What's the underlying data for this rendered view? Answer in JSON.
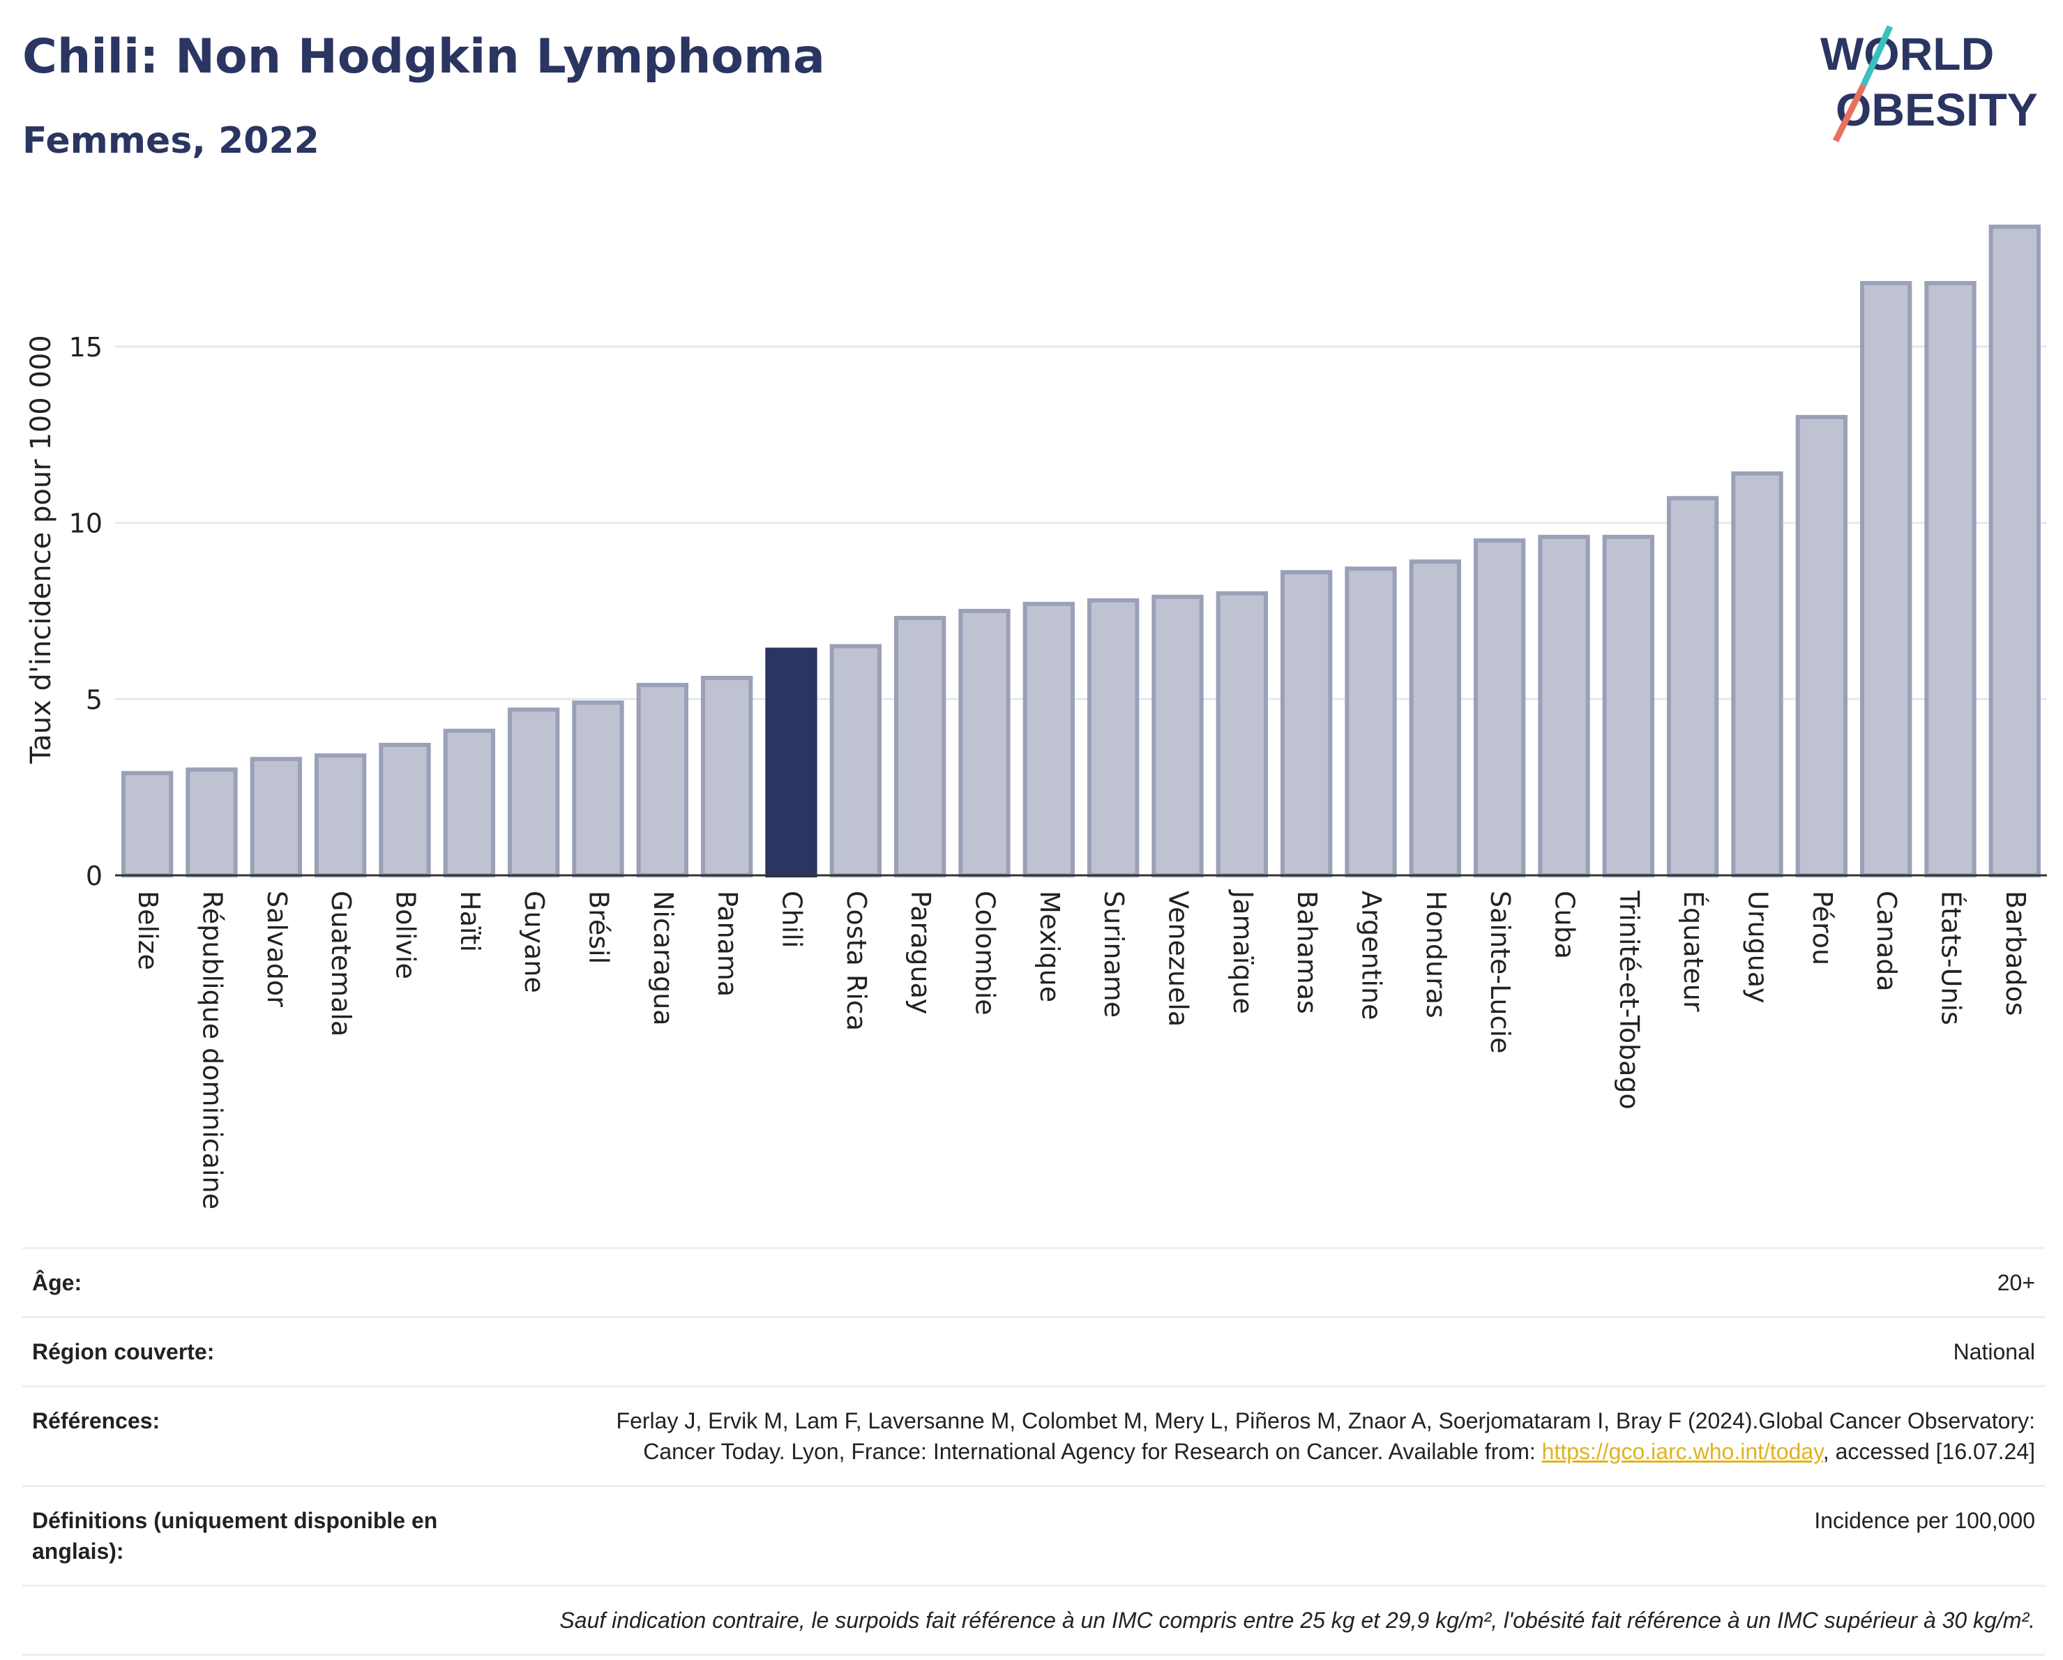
{
  "header": {
    "title": "Chili: Non Hodgkin Lymphoma",
    "subtitle": "Femmes, 2022",
    "logo_line1": "WORLD",
    "logo_line2": "OBESITY"
  },
  "colors": {
    "accent": "#2b3561",
    "bar": "#bfc3d1",
    "bar_border": "#9aa0b7",
    "highlight": "#2b3561",
    "logo_slash_teal": "#3bbfbf",
    "logo_slash_red": "#e8705f",
    "link": "#e0b21f"
  },
  "chart_data": {
    "type": "bar",
    "title": "Chili: Non Hodgkin Lymphoma",
    "subtitle": "Femmes, 2022",
    "xlabel": "",
    "ylabel": "Taux d'incidence pour 100 000",
    "ylim": [
      0,
      18.5
    ],
    "yticks": [
      0,
      5,
      10,
      15
    ],
    "grid": true,
    "highlight": "Chili",
    "categories": [
      "Belize",
      "République dominicaine",
      "Salvador",
      "Guatemala",
      "Bolivie",
      "Haïti",
      "Guyane",
      "Brésil",
      "Nicaragua",
      "Panama",
      "Chili",
      "Costa Rica",
      "Paraguay",
      "Colombie",
      "Mexique",
      "Suriname",
      "Venezuela",
      "Jamaïque",
      "Bahamas",
      "Argentine",
      "Honduras",
      "Sainte-Lucie",
      "Cuba",
      "Trinité-et-Tobago",
      "Équateur",
      "Uruguay",
      "Pérou",
      "Canada",
      "États-Unis",
      "Barbados"
    ],
    "values": [
      2.9,
      3.0,
      3.3,
      3.4,
      3.7,
      4.1,
      4.7,
      4.9,
      5.4,
      5.6,
      6.4,
      6.5,
      7.3,
      7.5,
      7.7,
      7.8,
      7.9,
      8.0,
      8.6,
      8.7,
      8.9,
      9.5,
      9.6,
      9.6,
      10.7,
      11.4,
      13.0,
      16.8,
      16.8,
      18.4
    ]
  },
  "info": {
    "age_label": "Âge:",
    "age_value": "20+",
    "region_label": "Région couverte:",
    "region_value": "National",
    "references_label": "Références:",
    "references_text": "Ferlay J, Ervik M, Lam F, Laversanne M, Colombet M, Mery L, Piñeros M, Znaor A, Soerjomataram I, Bray F (2024).Global Cancer Observatory: Cancer Today. Lyon, France: International Agency for Research on Cancer. Available from: ",
    "references_link": "https://gco.iarc.who.int/today",
    "references_tail": ", accessed [16.07.24]",
    "definitions_label": "Définitions (uniquement disponible en anglais):",
    "definitions_value": "Incidence per 100,000",
    "note": "Sauf indication contraire, le surpoids fait référence à un IMC compris entre 25 kg et 29,9 kg/m², l'obésité fait référence à un IMC supérieur à 30 kg/m²."
  }
}
